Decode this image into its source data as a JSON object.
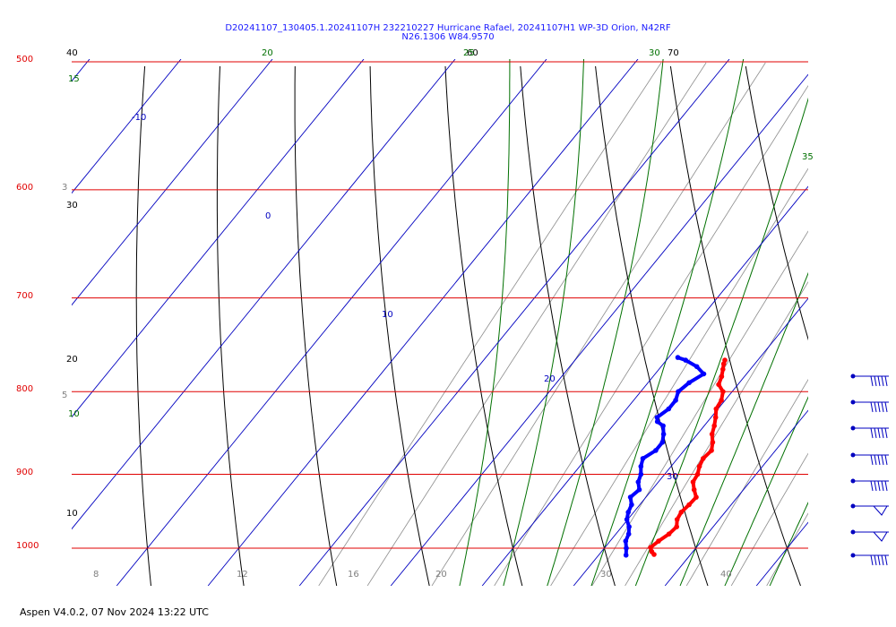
{
  "window": {
    "title_line1": "D20241107_130405.1.20241107H 232210227 Hurricane Rafael, 20241107H1 WP-3D Orion, N42RF",
    "title_line2": "N26.1306 W84.9570",
    "footer": "Aspen V4.0.2, 07 Nov 2024  13:22 UTC"
  },
  "colors": {
    "isobar": "#e00000",
    "isotherm": "#0000c0",
    "dry_adiabat": "#000000",
    "moist_adiabat": "#007000",
    "mixing_ratio": "#909090",
    "temperature": "#ff0000",
    "dewpoint": "#0000ff"
  },
  "chart_data": {
    "type": "skew-t",
    "pressure_range_hpa": [
      1000,
      500
    ],
    "isobars_hpa": [
      500,
      600,
      700,
      800,
      900,
      1000
    ],
    "isobar_labels": [
      "500",
      "600",
      "700",
      "800",
      "900",
      "1000"
    ],
    "isotherm_labels": [
      {
        "text": "-10",
        "t": -10
      },
      {
        "text": "0",
        "t": 0
      },
      {
        "text": "10",
        "t": 10
      },
      {
        "text": "20",
        "t": 20
      },
      {
        "text": "30",
        "t": 30
      }
    ],
    "dry_adiabat_labels": [
      "70",
      "60",
      "40",
      "30",
      "20",
      "10"
    ],
    "moist_adiabat_labels": [
      "35",
      "30",
      "25",
      "20",
      "15",
      "10"
    ],
    "mixing_ratio_labels": [
      "3",
      "5",
      "8",
      "12",
      "16",
      "20",
      "30",
      "40"
    ],
    "bottom_axis_labels": [
      "8",
      "12",
      "16",
      "20",
      "30",
      "40"
    ],
    "profiles": {
      "temperature": [
        {
          "p": 1009,
          "t": 26.0
        },
        {
          "p": 1005,
          "t": 25.5
        },
        {
          "p": 999,
          "t": 25.0
        },
        {
          "p": 990,
          "t": 25.3
        },
        {
          "p": 980,
          "t": 25.8
        },
        {
          "p": 970,
          "t": 26.0
        },
        {
          "p": 960,
          "t": 25.4
        },
        {
          "p": 950,
          "t": 25.2
        },
        {
          "p": 940,
          "t": 25.4
        },
        {
          "p": 930,
          "t": 25.5
        },
        {
          "p": 920,
          "t": 24.6
        },
        {
          "p": 910,
          "t": 23.8
        },
        {
          "p": 900,
          "t": 23.6
        },
        {
          "p": 890,
          "t": 23.1
        },
        {
          "p": 880,
          "t": 22.8
        },
        {
          "p": 870,
          "t": 23.0
        },
        {
          "p": 860,
          "t": 22.4
        },
        {
          "p": 850,
          "t": 21.6
        },
        {
          "p": 840,
          "t": 21.1
        },
        {
          "p": 830,
          "t": 20.5
        },
        {
          "p": 820,
          "t": 19.8
        },
        {
          "p": 810,
          "t": 19.6
        },
        {
          "p": 800,
          "t": 19.0
        },
        {
          "p": 792,
          "t": 17.9
        },
        {
          "p": 783,
          "t": 17.5
        },
        {
          "p": 775,
          "t": 17.0
        },
        {
          "p": 769,
          "t": 16.6
        },
        {
          "p": 765,
          "t": 16.4
        }
      ],
      "dewpoint": [
        {
          "p": 1010,
          "t": 23.0
        },
        {
          "p": 1000,
          "t": 22.4
        },
        {
          "p": 990,
          "t": 21.7
        },
        {
          "p": 980,
          "t": 21.4
        },
        {
          "p": 970,
          "t": 20.8
        },
        {
          "p": 960,
          "t": 19.9
        },
        {
          "p": 950,
          "t": 19.4
        },
        {
          "p": 940,
          "t": 19.1
        },
        {
          "p": 930,
          "t": 18.3
        },
        {
          "p": 920,
          "t": 18.6
        },
        {
          "p": 910,
          "t": 17.8
        },
        {
          "p": 900,
          "t": 17.4
        },
        {
          "p": 890,
          "t": 16.7
        },
        {
          "p": 880,
          "t": 16.2
        },
        {
          "p": 870,
          "t": 16.9
        },
        {
          "p": 860,
          "t": 16.9
        },
        {
          "p": 850,
          "t": 16.3
        },
        {
          "p": 840,
          "t": 15.5
        },
        {
          "p": 835,
          "t": 14.5
        },
        {
          "p": 830,
          "t": 14.1
        },
        {
          "p": 820,
          "t": 14.6
        },
        {
          "p": 810,
          "t": 14.6
        },
        {
          "p": 800,
          "t": 14.1
        },
        {
          "p": 790,
          "t": 14.5
        },
        {
          "p": 780,
          "t": 15.3
        },
        {
          "p": 772,
          "t": 13.9
        },
        {
          "p": 765,
          "t": 12.1
        },
        {
          "p": 762,
          "t": 11.0
        }
      ]
    },
    "wind_barbs": [
      {
        "symbol": "barbs",
        "flags": 0,
        "barbs": 5
      },
      {
        "symbol": "barbs",
        "flags": 0,
        "barbs": 5
      },
      {
        "symbol": "barbs",
        "flags": 0,
        "barbs": 5
      },
      {
        "symbol": "barbs",
        "flags": 0,
        "barbs": 5
      },
      {
        "symbol": "barbs",
        "flags": 0,
        "barbs": 5
      },
      {
        "symbol": "pennant",
        "flags": 1,
        "barbs": 0
      },
      {
        "symbol": "pennant",
        "flags": 1,
        "barbs": 0
      },
      {
        "symbol": "barbs",
        "flags": 0,
        "barbs": 5
      }
    ]
  }
}
